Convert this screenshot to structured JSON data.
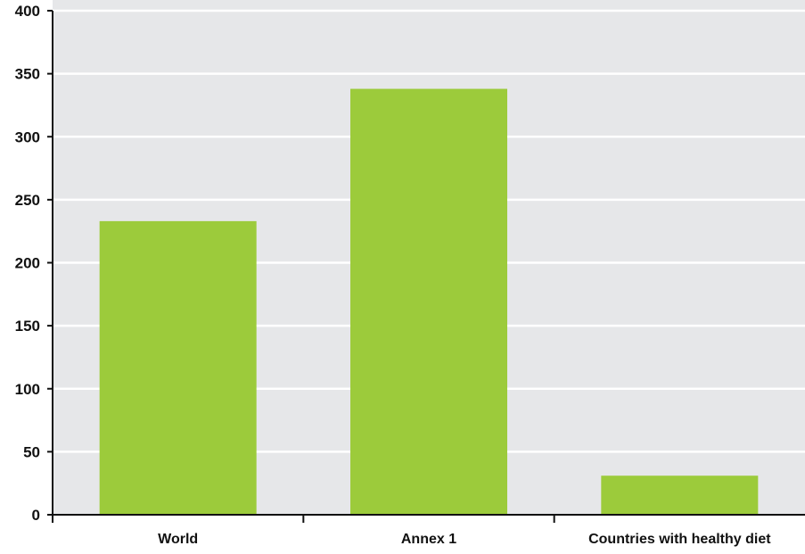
{
  "colors": {
    "plot_background": "#e6e7e9",
    "gridline": "#ffffff",
    "bar": "#9ccb3b",
    "axis": "#111111"
  },
  "chart_data": {
    "type": "bar",
    "title": "",
    "xlabel": "",
    "ylabel": "",
    "categories": [
      "World",
      "Annex 1",
      "Countries with healthy diet"
    ],
    "values": [
      233,
      338,
      31
    ],
    "ylim": [
      0,
      400
    ],
    "yticks": [
      0,
      50,
      100,
      150,
      200,
      250,
      300,
      350,
      400
    ],
    "grid": true,
    "legend": "none"
  }
}
